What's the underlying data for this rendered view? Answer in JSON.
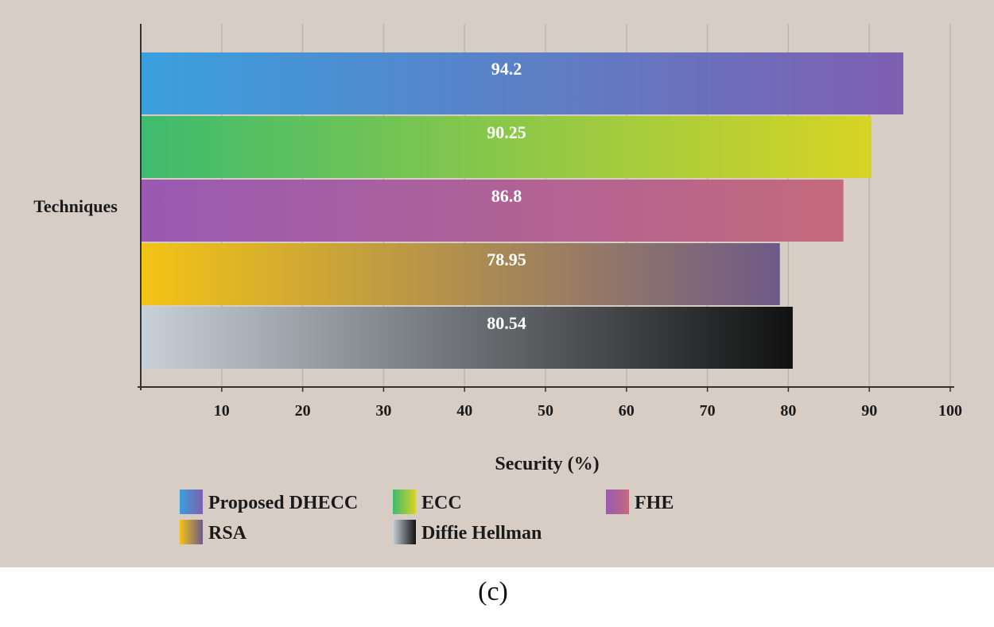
{
  "chart_data": {
    "type": "bar",
    "orientation": "horizontal",
    "categories": [
      "Proposed DHECC",
      "ECC",
      "FHE",
      "RSA",
      "Diffie Hellman"
    ],
    "values": [
      94.2,
      90.25,
      86.8,
      78.95,
      80.54
    ],
    "value_labels": [
      "94.2",
      "90.25",
      "86.8",
      "78.95",
      "80.54"
    ],
    "xlabel": "Security (%)",
    "ylabel": "Techniques",
    "xlim": [
      0,
      100
    ],
    "xticks": [
      10,
      20,
      30,
      40,
      50,
      60,
      70,
      80,
      90,
      100
    ],
    "grid": true,
    "legend_position": "bottom",
    "colors": {
      "Proposed DHECC": [
        "#3aa0dd",
        "#7e5fb0"
      ],
      "ECC": [
        "#3dbb6e",
        "#d8d424"
      ],
      "FHE": [
        "#9a5ab2",
        "#c46a7c"
      ],
      "RSA": [
        "#f3c415",
        "#6e5a88"
      ],
      "Diffie Hellman": [
        "#c8d0d8",
        "#111111"
      ]
    }
  },
  "caption": "(c)"
}
